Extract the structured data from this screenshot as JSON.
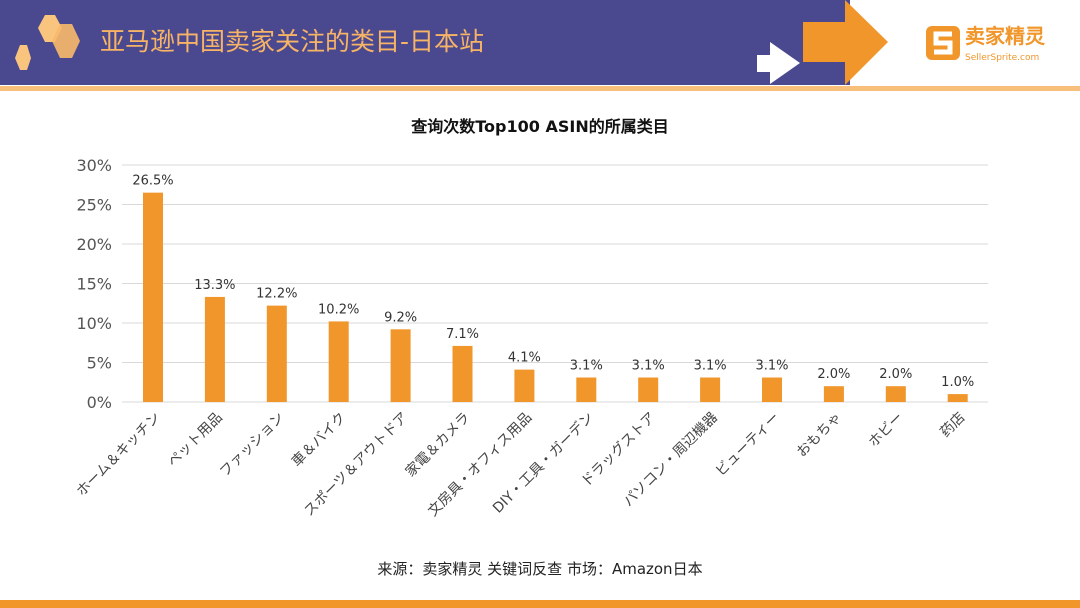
{
  "header": {
    "title": "亚马逊中国卖家关注的类目-日本站",
    "logo_name": "卖家精灵",
    "logo_url_text": "SellerSprite.com"
  },
  "colors": {
    "header_bg": "#4a4990",
    "accent": "#f0962a",
    "title_text": "#f7b366"
  },
  "footer": {
    "source": "来源：卖家精灵 关键词反查   市场：Amazon日本"
  },
  "chart_data": {
    "type": "bar",
    "title": "查询次数Top100 ASIN的所属类目",
    "categories": [
      "ホーム＆キッチン",
      "ペット用品",
      "ファッション",
      "車＆バイク",
      "スポーツ＆アウトドア",
      "家電＆カメラ",
      "文房具・オフィス用品",
      "DIY・工具・ガーデン",
      "ドラッグストア",
      "パソコン・周辺機器",
      "ビューティー",
      "おもちゃ",
      "ホビー",
      "药店"
    ],
    "values": [
      26.5,
      13.3,
      12.2,
      10.2,
      9.2,
      7.1,
      4.1,
      3.1,
      3.1,
      3.1,
      3.1,
      2.0,
      2.0,
      1.0
    ],
    "data_labels": [
      "26.5%",
      "13.3%",
      "12.2%",
      "10.2%",
      "9.2%",
      "7.1%",
      "4.1%",
      "3.1%",
      "3.1%",
      "3.1%",
      "3.1%",
      "2.0%",
      "2.0%",
      "1.0%"
    ],
    "yticks": [
      "0%",
      "5%",
      "10%",
      "15%",
      "20%",
      "25%",
      "30%"
    ],
    "ylim": [
      0,
      30
    ],
    "grid": true,
    "bar_color": "#f0962a"
  }
}
